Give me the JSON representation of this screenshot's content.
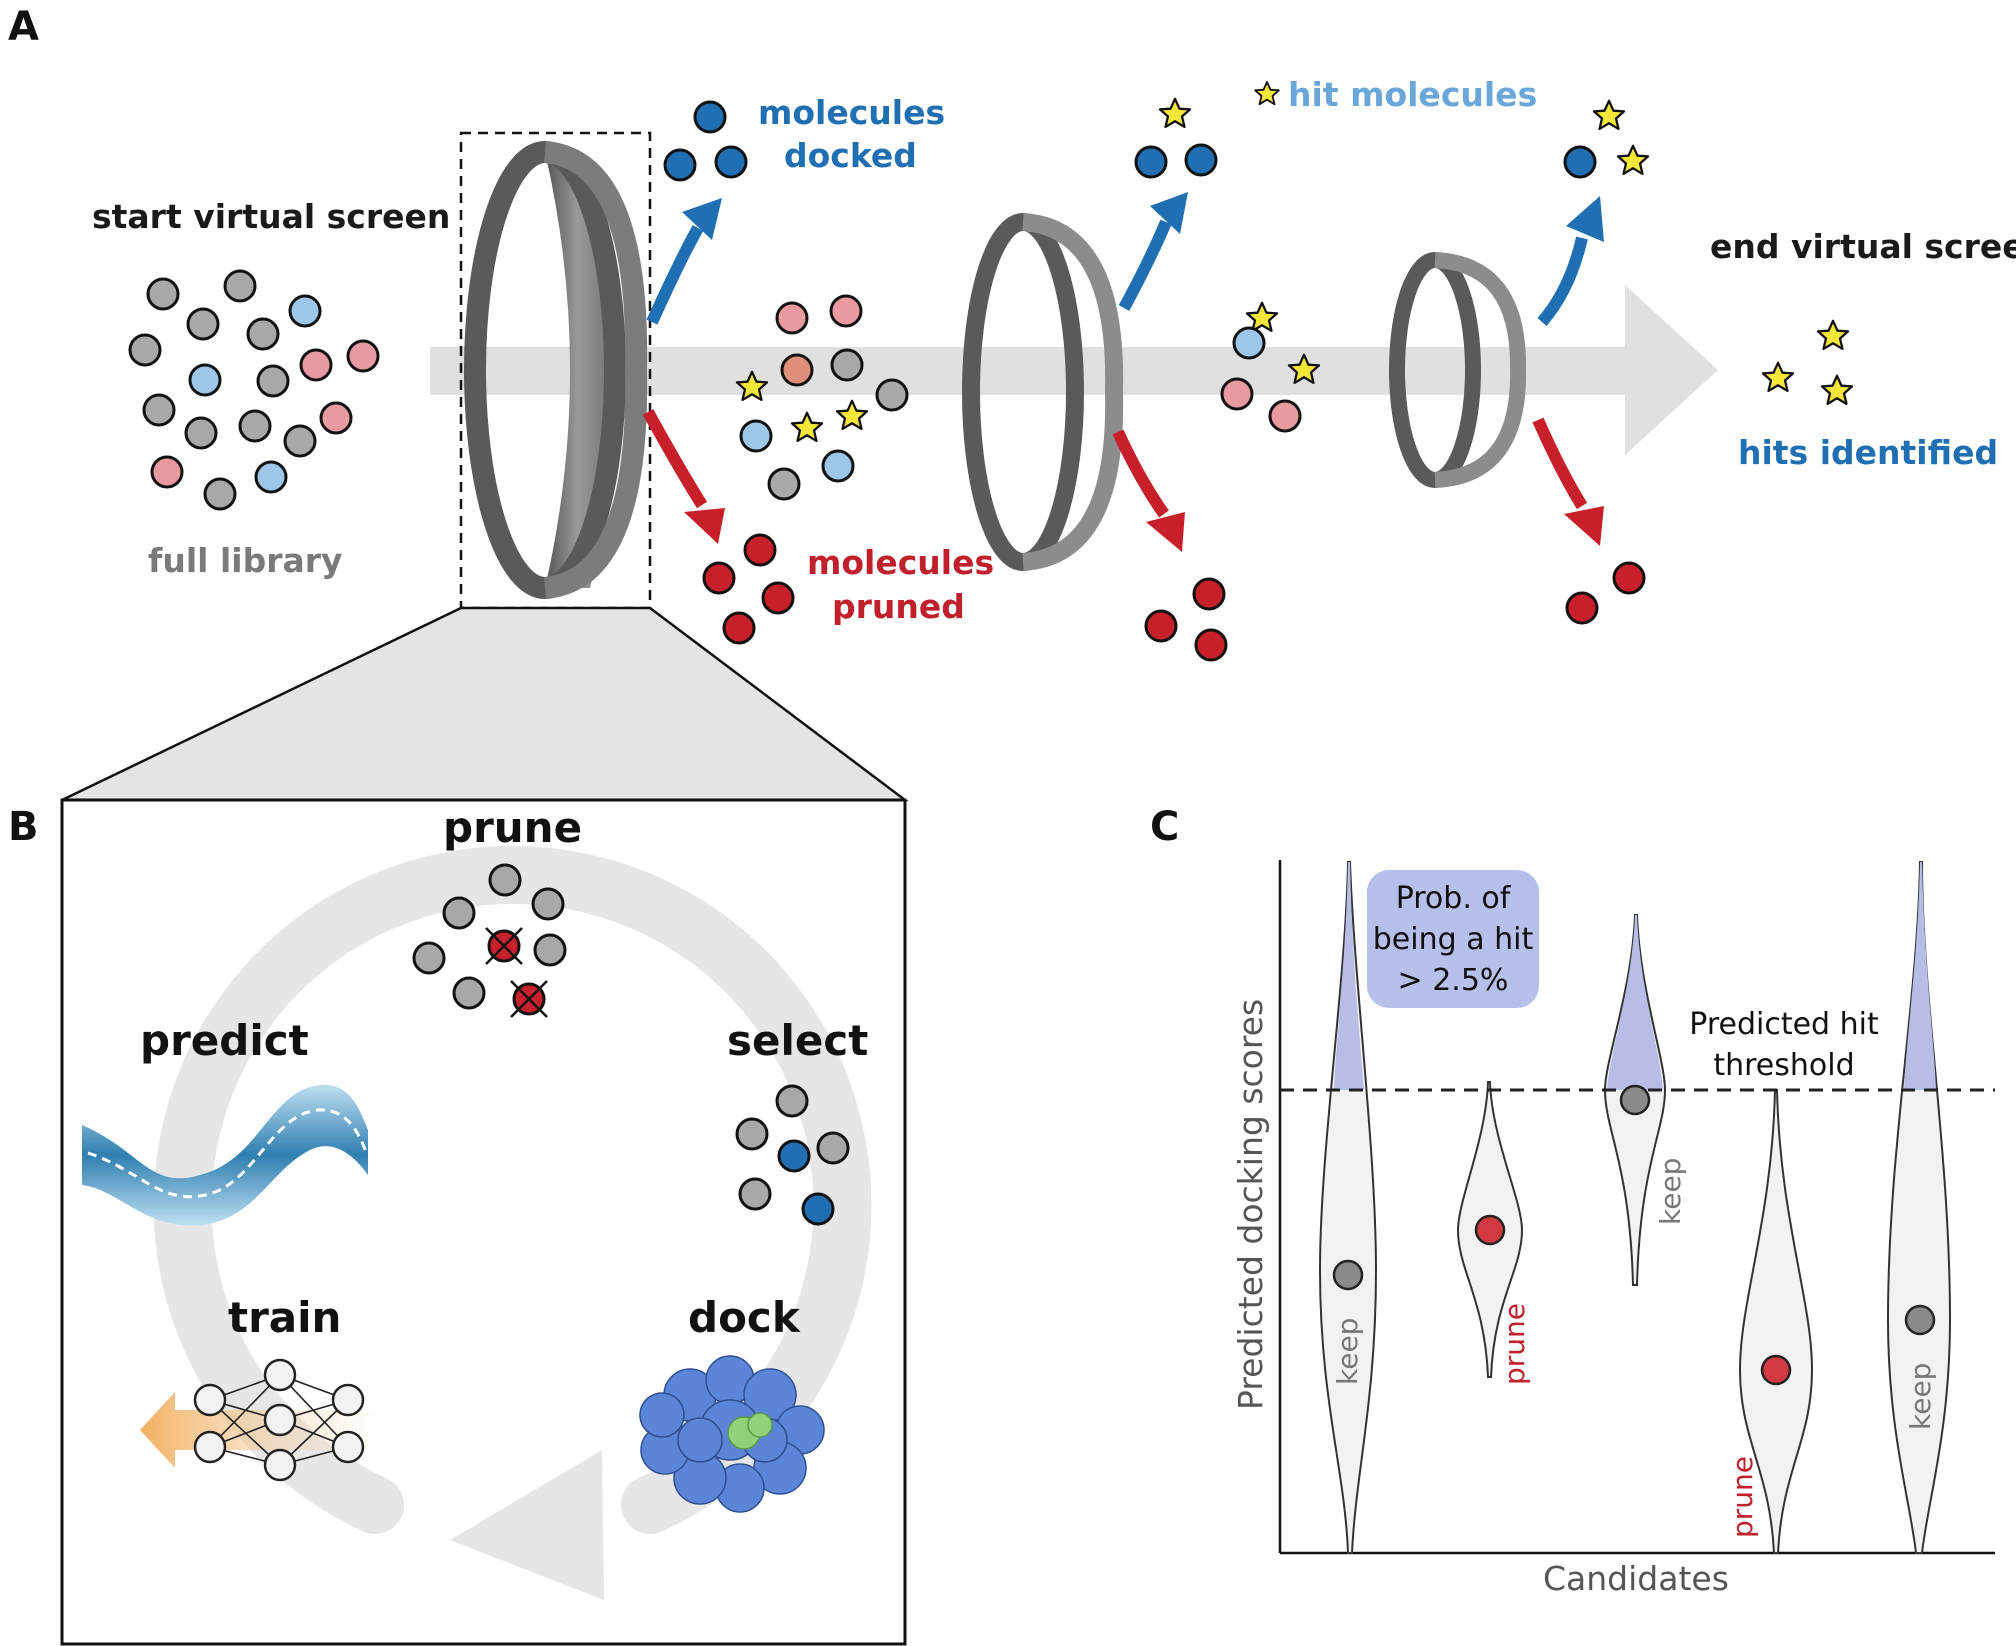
{
  "panels": {
    "a": "A",
    "b": "B",
    "c": "C"
  },
  "panel_a": {
    "start_label": "start virtual screen",
    "library_label": "full library",
    "docked_label_line1": "molecules",
    "docked_label_line2": "docked",
    "pruned_label_line1": "molecules",
    "pruned_label_line2": "pruned",
    "hit_legend_label": "hit molecules",
    "end_label": "end virtual screen",
    "hits_label": "hits identified"
  },
  "panel_b": {
    "steps": [
      "prune",
      "select",
      "dock",
      "train",
      "predict"
    ]
  },
  "panel_c": {
    "ylabel": "Predicted docking scores",
    "xlabel": "Candidates",
    "prob_box_lines": [
      "Prob. of",
      "being a hit",
      "> 2.5%"
    ],
    "threshold_lines": [
      "Predicted hit",
      "threshold"
    ],
    "violin_labels": [
      "keep",
      "prune",
      "keep",
      "prune",
      "keep"
    ]
  },
  "colors": {
    "gray_molecule": "#a8a8a8",
    "light_blue_molecule": "#9ec6e8",
    "pink_molecule": "#e99aa0",
    "docked_blue": "#1f6fb2",
    "pruned_red": "#c8202b",
    "hit_star": "#f5e63a",
    "violin_fill": "#f2f2f2",
    "violin_top": "#b7bde6",
    "prob_box": "#b7c0ea"
  },
  "icons": [
    "ring-filter-icon",
    "star-icon",
    "neural-network-icon",
    "protein-icon",
    "cycle-arrow-icon"
  ]
}
